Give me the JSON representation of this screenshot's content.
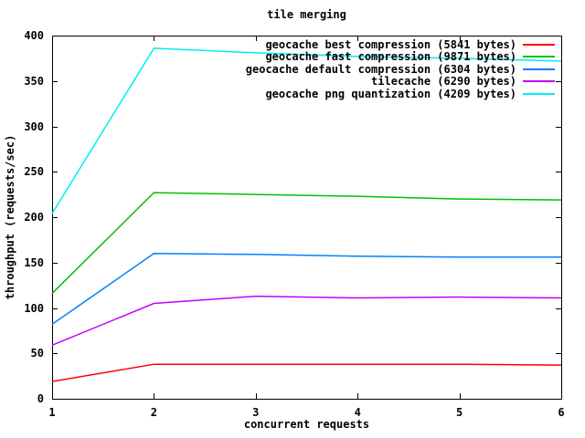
{
  "chart_data": {
    "type": "line",
    "title": "tile merging",
    "xlabel": "concurrent requests",
    "ylabel": "throughput (requests/sec)",
    "xlim": [
      1,
      6
    ],
    "ylim": [
      0,
      400
    ],
    "xticks": [
      1,
      2,
      3,
      4,
      5,
      6
    ],
    "yticks": [
      0,
      50,
      100,
      150,
      200,
      250,
      300,
      350,
      400
    ],
    "x": [
      1,
      2,
      3,
      4,
      5,
      6
    ],
    "series": [
      {
        "name": "geocache best compression (5841 bytes)",
        "color": "#ff0000",
        "values": [
          19,
          38,
          38,
          38,
          38,
          37
        ]
      },
      {
        "name": "geocache fast compression (9871 bytes)",
        "color": "#00c000",
        "values": [
          116,
          227,
          225,
          223,
          220,
          219
        ]
      },
      {
        "name": "geocache default compression (6304 bytes)",
        "color": "#0080ff",
        "values": [
          82,
          160,
          159,
          157,
          156,
          156
        ]
      },
      {
        "name": "tilecache (6290 bytes)",
        "color": "#c000ff",
        "values": [
          59,
          105,
          113,
          111,
          112,
          111
        ]
      },
      {
        "name": "geocache png quantization (4209 bytes)",
        "color": "#00eeee",
        "values": [
          204,
          386,
          381,
          377,
          375,
          372
        ]
      }
    ],
    "legend_position": "top-right-inside",
    "grid": false,
    "border_box": true,
    "background": "#ffffff",
    "text_color": "#000000"
  }
}
